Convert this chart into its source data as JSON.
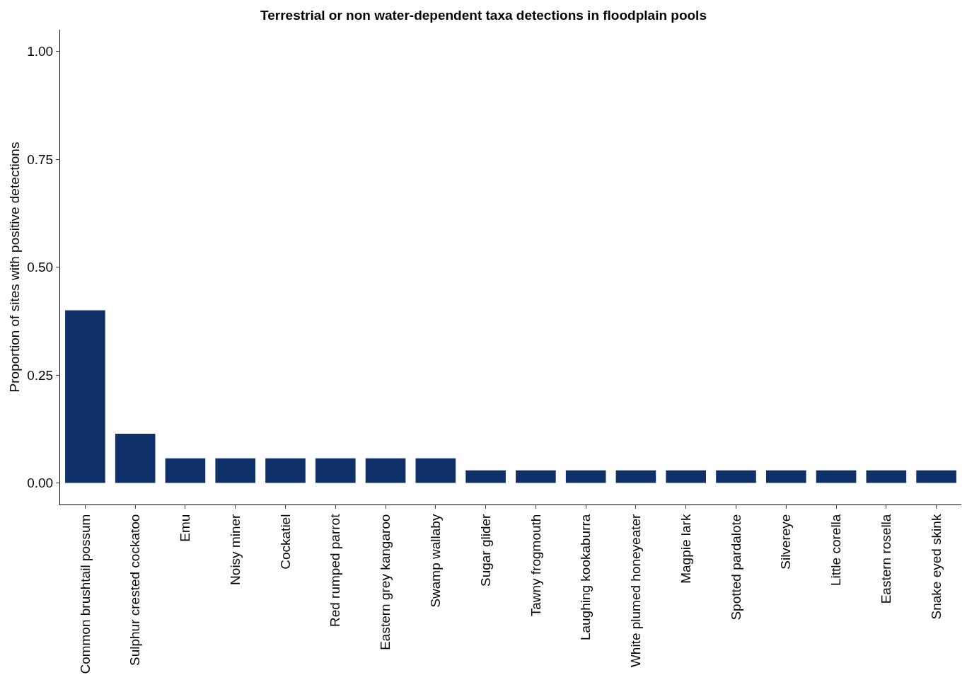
{
  "chart_data": {
    "type": "bar",
    "title": "Terrestrial or non water-dependent taxa detections in floodplain pools",
    "ylabel": "Proportion of sites with positive detections",
    "categories": [
      "Common brushtail possum",
      "Sulphur crested cockatoo",
      "Emu",
      "Noisy miner",
      "Cockatiel",
      "Red rumped parrot",
      "Eastern grey kangaroo",
      "Swamp wallaby",
      "Sugar glider",
      "Tawny frogmouth",
      "Laughing kookaburra",
      "White plumed honeyeater",
      "Magpie lark",
      "Spotted pardalote",
      "Silvereye",
      "Little corella",
      "Eastern rosella",
      "Snake eyed skink"
    ],
    "values": [
      0.4,
      0.114,
      0.057,
      0.057,
      0.057,
      0.057,
      0.057,
      0.057,
      0.029,
      0.029,
      0.029,
      0.029,
      0.029,
      0.029,
      0.029,
      0.029,
      0.029,
      0.029
    ],
    "color": "#0f3069",
    "ylim": [
      -0.05,
      1.05
    ],
    "yticks": [
      {
        "value": 0,
        "label": "0.00"
      },
      {
        "value": 0.25,
        "label": "0.25"
      },
      {
        "value": 0.5,
        "label": "0.50"
      },
      {
        "value": 0.75,
        "label": "0.75"
      },
      {
        "value": 1,
        "label": "1.00"
      }
    ],
    "legend": false
  }
}
